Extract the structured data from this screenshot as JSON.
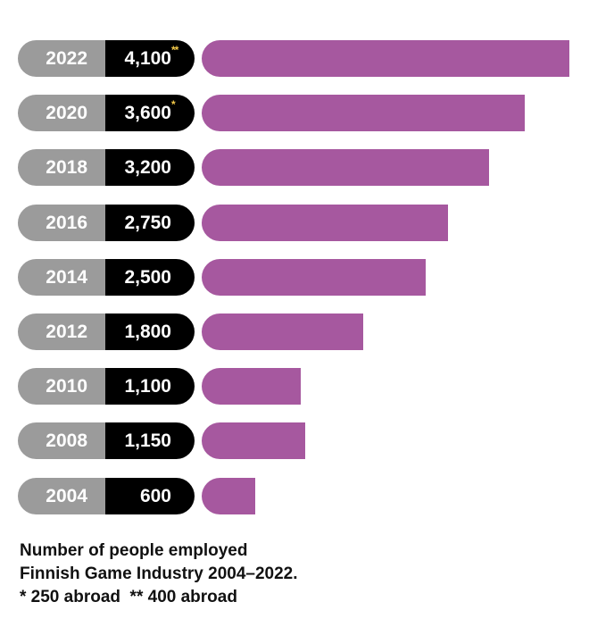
{
  "chart_data": {
    "type": "bar",
    "orientation": "horizontal",
    "categories": [
      "2022",
      "2020",
      "2018",
      "2016",
      "2014",
      "2012",
      "2010",
      "2008",
      "2004"
    ],
    "values": [
      4100,
      3600,
      3200,
      2750,
      2500,
      1800,
      1100,
      1150,
      600
    ],
    "value_labels": [
      "4,100",
      "3,600",
      "3,200",
      "2,750",
      "2,500",
      "1,800",
      "1,100",
      "1,150",
      "600"
    ],
    "value_marks": [
      "**",
      "*",
      "",
      "",
      "",
      "",
      "",
      "",
      ""
    ],
    "title": "Number of people employed Finnish Game Industry 2004–2022.",
    "xlabel": "",
    "ylabel": "",
    "xlim": [
      0,
      4100
    ],
    "grid": false,
    "colors": {
      "bar": "#a6589f",
      "year_pill": "#9b9b9b",
      "value_pill": "#000000",
      "mark": "#f3c94a"
    }
  },
  "caption": {
    "line1": "Number of people employed",
    "line2": "Finnish Game Industry 2004–2022.",
    "line3": "* 250 abroad  ** 400 abroad"
  }
}
